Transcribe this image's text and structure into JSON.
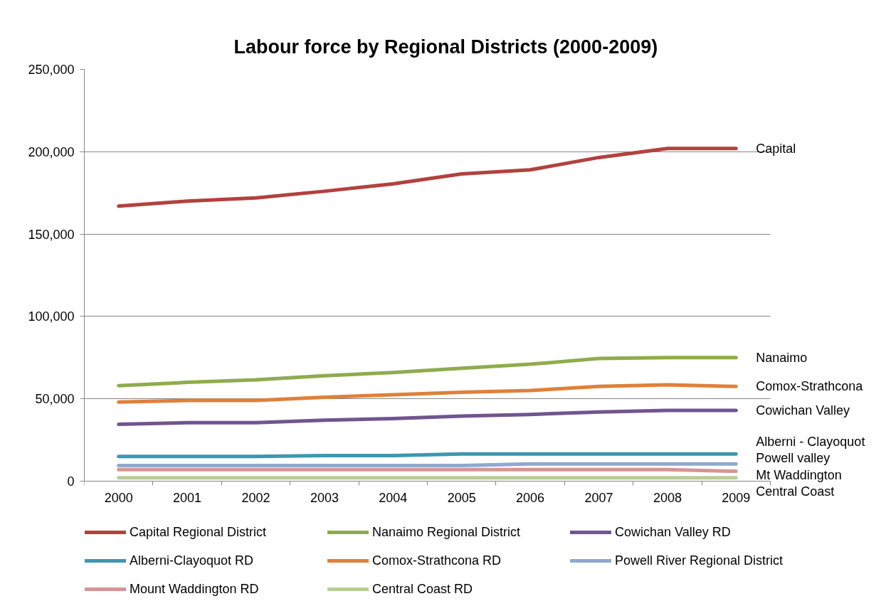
{
  "chart_data": {
    "type": "line",
    "title": "Labour force by Regional Districts (2000-2009)",
    "categories": [
      "2000",
      "2001",
      "2002",
      "2003",
      "2004",
      "2005",
      "2006",
      "2007",
      "2008",
      "2009"
    ],
    "series": [
      {
        "name": "Capital Regional District",
        "color": "#b3413e",
        "values": [
          167000,
          170000,
          172000,
          176000,
          180500,
          186500,
          189000,
          196500,
          202000,
          202000
        ]
      },
      {
        "name": "Nanaimo Regional District",
        "color": "#8eac4c",
        "values": [
          58000,
          60000,
          61500,
          64000,
          66000,
          68500,
          71000,
          74500,
          75000,
          75000
        ]
      },
      {
        "name": "Cowichan Valley RD",
        "color": "#71558f",
        "values": [
          34500,
          35500,
          35500,
          37000,
          38000,
          39500,
          40500,
          42000,
          43000,
          43000
        ]
      },
      {
        "name": "Alberni-Clayoquot RD",
        "color": "#3d97b0",
        "values": [
          15000,
          15000,
          15000,
          15500,
          15500,
          16500,
          16500,
          16500,
          16500,
          16500
        ]
      },
      {
        "name": "Comox-Strathcona RD",
        "color": "#e08039",
        "values": [
          48000,
          49000,
          49000,
          51000,
          52500,
          54000,
          55000,
          57500,
          58500,
          57500
        ]
      },
      {
        "name": "Powell River Regional District",
        "color": "#91a8cf",
        "values": [
          9500,
          9500,
          9500,
          9500,
          9500,
          9500,
          10500,
          10500,
          10500,
          10500
        ]
      },
      {
        "name": "Mount Waddington RD",
        "color": "#d49593",
        "values": [
          7000,
          7000,
          7000,
          7000,
          7000,
          7000,
          7000,
          7000,
          7000,
          6000
        ]
      },
      {
        "name": "Central Coast RD",
        "color": "#b9cd95",
        "values": [
          2000,
          2000,
          2000,
          2000,
          2000,
          2000,
          2000,
          2000,
          2000,
          2000
        ]
      }
    ],
    "ylim": [
      0,
      250000
    ],
    "yticks": [
      0,
      {
        "value": 50000,
        "label": "50,000"
      },
      {
        "value": 100000,
        "label": "100,000"
      },
      {
        "value": 150000,
        "label": "150,000"
      },
      {
        "value": 200000,
        "label": "200,000"
      },
      {
        "value": 250000,
        "label": "250,000"
      }
    ],
    "grid": "y",
    "legend": "bottom",
    "line_style": "solid",
    "annotations": [
      {
        "text": "Capital",
        "x": "2009",
        "y": 202000
      },
      {
        "text": "Nanaimo",
        "x": "2009",
        "y": 75000
      },
      {
        "text": "Comox-Strathcona",
        "x": "2009",
        "y": 57500
      },
      {
        "text": "Cowichan Valley",
        "x": "2009",
        "y": 43000
      },
      {
        "text": "Alberni - Clayoquot",
        "x": "2009",
        "y": 16500
      },
      {
        "text": "Powell valley",
        "x": "2009",
        "y": 10500
      },
      {
        "text": "Mt Waddington",
        "x": "2009",
        "y": 6000
      },
      {
        "text": "Central Coast",
        "x": "2009",
        "y": 2000
      }
    ]
  }
}
